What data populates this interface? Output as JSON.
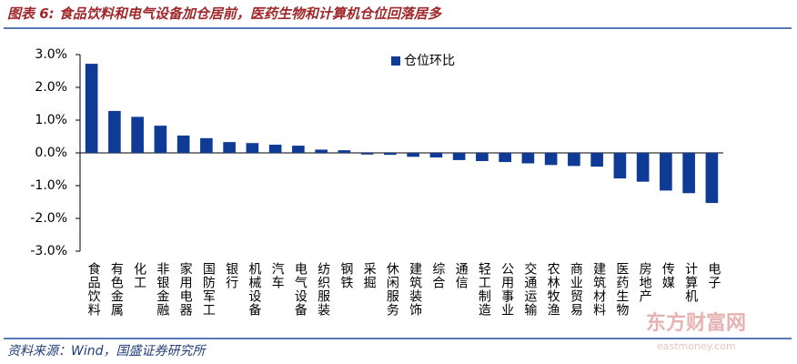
{
  "chart_data": {
    "type": "bar",
    "title": "图表 6:  食品饮料和电气设备加仓居前，医药生物和计算机仓位回落居多",
    "source": "资料来源：Wind，国盛证券研究所",
    "watermark": "东方财富网",
    "watermark_url": "eastmoney.com",
    "categories": [
      "食品饮料",
      "有色金属",
      "化工",
      "非银金融",
      "家用电器",
      "国防军工",
      "银行",
      "机械设备",
      "汽车",
      "电气设备",
      "纺织服装",
      "钢铁",
      "采掘",
      "休闲服务",
      "建筑装饰",
      "综合",
      "通信",
      "轻工制造",
      "公用事业",
      "交通运输",
      "农林牧渔",
      "商业贸易",
      "建筑材料",
      "医药生物",
      "房地产",
      "传媒",
      "计算机",
      "电子"
    ],
    "series": [
      {
        "name": "仓位环比",
        "color": "#0f3b96",
        "values": [
          2.72,
          1.28,
          1.1,
          0.83,
          0.53,
          0.45,
          0.33,
          0.3,
          0.25,
          0.22,
          0.1,
          0.08,
          -0.05,
          -0.06,
          -0.12,
          -0.14,
          -0.22,
          -0.25,
          -0.28,
          -0.32,
          -0.37,
          -0.4,
          -0.42,
          -0.78,
          -0.88,
          -1.15,
          -1.23,
          -1.53
        ]
      }
    ],
    "ylim": [
      -3,
      3
    ],
    "yticks": [
      {
        "value": -3,
        "label": "-3.0%"
      },
      {
        "value": -2,
        "label": "-2.0%"
      },
      {
        "value": -1,
        "label": "-1.0%"
      },
      {
        "value": 0,
        "label": "0.0%"
      },
      {
        "value": 1,
        "label": "1.0%"
      },
      {
        "value": 2,
        "label": "2.0%"
      },
      {
        "value": 3,
        "label": "3.0%"
      }
    ],
    "grid": false
  }
}
